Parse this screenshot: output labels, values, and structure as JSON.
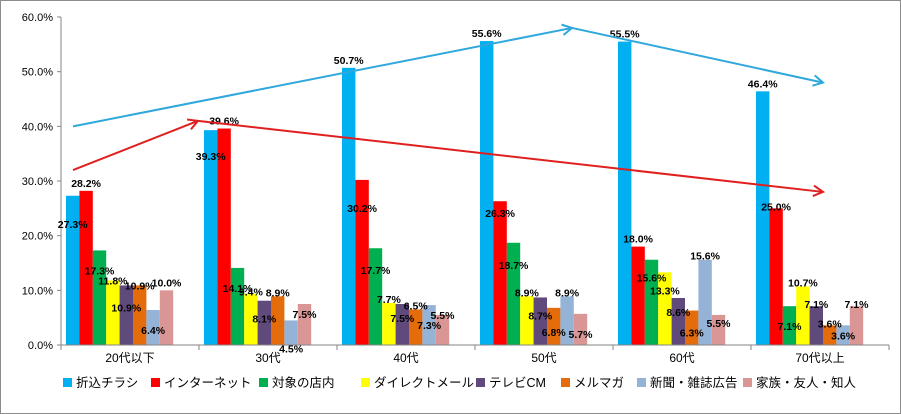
{
  "chart_data": {
    "type": "bar",
    "title": "",
    "xlabel": "",
    "ylabel": "",
    "ylim": [
      0,
      60
    ],
    "y_ticks": [
      "0.0%",
      "10.0%",
      "20.0%",
      "30.0%",
      "40.0%",
      "50.0%",
      "60.0%"
    ],
    "grid": false,
    "legend_position": "bottom",
    "categories": [
      "20代以下",
      "30代",
      "40代",
      "50代",
      "60代",
      "70代以上"
    ],
    "series": [
      {
        "name": "折込チラシ",
        "color": "#00b0f0",
        "values": [
          27.3,
          39.3,
          50.7,
          55.6,
          55.5,
          46.4
        ]
      },
      {
        "name": "インターネット",
        "color": "#ff0000",
        "values": [
          28.2,
          39.6,
          30.2,
          26.3,
          18.0,
          25.0
        ]
      },
      {
        "name": "対象の店内",
        "color": "#00b050",
        "values": [
          17.3,
          14.1,
          17.7,
          18.7,
          15.6,
          7.1
        ]
      },
      {
        "name": "ダイレクトメール",
        "color": "#ffff00",
        "values": [
          11.8,
          9.4,
          7.7,
          8.9,
          13.3,
          10.7
        ]
      },
      {
        "name": "テレビCM",
        "color": "#604a7b",
        "values": [
          10.9,
          8.1,
          7.5,
          8.7,
          8.6,
          7.1
        ]
      },
      {
        "name": "メルマガ",
        "color": "#e46c0a",
        "values": [
          10.9,
          8.9,
          6.5,
          6.8,
          6.3,
          3.6
        ]
      },
      {
        "name": "新聞・雑誌広告",
        "color": "#95b3d7",
        "values": [
          6.4,
          4.5,
          7.3,
          8.9,
          15.6,
          3.6
        ]
      },
      {
        "name": "家族・友人・知人",
        "color": "#d99694",
        "values": [
          10.0,
          7.5,
          5.5,
          5.7,
          5.5,
          7.1
        ]
      }
    ],
    "data_labels": [
      [
        "27.3%",
        "39.3%",
        "50.7%",
        "55.6%",
        "55.5%",
        "46.4%"
      ],
      [
        "28.2%",
        "39.6%",
        "30.2%",
        "26.3%",
        "18.0%",
        "25.0%"
      ],
      [
        "17.3%",
        "14.1%",
        "17.7%",
        "18.7%",
        "15.6%",
        "7.1%"
      ],
      [
        "11.8%",
        "9.4%",
        "7.7%",
        "8.9%",
        "13.3%",
        "10.7%"
      ],
      [
        "10.9%",
        "8.1%",
        "7.5%",
        "8.7%",
        "8.6%",
        "7.1%"
      ],
      [
        "10.9%",
        "8.9%",
        "6.5%",
        "6.8%",
        "6.3%",
        "3.6%"
      ],
      [
        "6.4%",
        "4.5%",
        "7.3%",
        "8.9%",
        "15.6%",
        "3.6%"
      ],
      [
        "10.0%",
        "7.5%",
        "5.5%",
        "5.7%",
        "5.5%",
        "7.1%"
      ]
    ],
    "annotations": [
      {
        "kind": "trend-arrow",
        "color": "#2fa8dc",
        "from": {
          "x": "20代以下",
          "y": 40
        },
        "via": {
          "x": "50代",
          "y": 58
        },
        "to": {
          "x": "70代以上",
          "y": 48
        }
      },
      {
        "kind": "trend-arrow",
        "color": "#e0201f",
        "from": {
          "x": "20代以下",
          "y": 32
        },
        "via": {
          "x": "30代",
          "y": 41
        },
        "to": {
          "x": "70代以上",
          "y": 28
        }
      }
    ]
  }
}
